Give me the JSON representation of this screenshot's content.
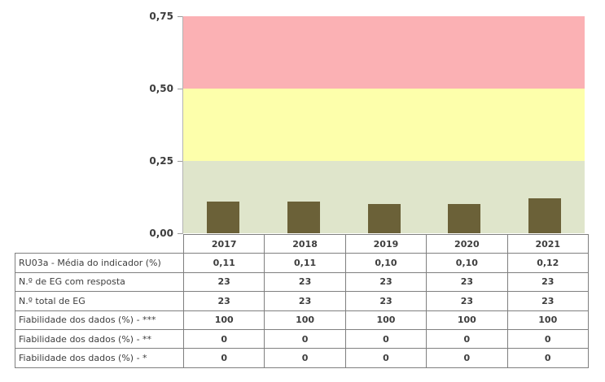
{
  "chart_data": {
    "type": "bar",
    "title": "",
    "xlabel": "",
    "ylabel": "",
    "categories": [
      "2017",
      "2018",
      "2019",
      "2020",
      "2021"
    ],
    "values": [
      0.11,
      0.11,
      0.1,
      0.1,
      0.12
    ],
    "value_labels": [
      "0,11",
      "0,11",
      "0,10",
      "0,10",
      "0,12"
    ],
    "ylim": [
      0,
      0.75
    ],
    "ytick_labels": [
      "0,75",
      "0,50",
      "0,25",
      "0,00"
    ],
    "ytick_values": [
      0.75,
      0.5,
      0.25,
      0.0
    ],
    "grid": false,
    "legend_position": "none",
    "bar_color": "#6B6138",
    "bands": [
      {
        "name": "band-red",
        "from": 0.5,
        "to": 0.75,
        "color": "#FBB1B4"
      },
      {
        "name": "band-yellow",
        "from": 0.25,
        "to": 0.5,
        "color": "#FDFFAB"
      },
      {
        "name": "band-green",
        "from": 0.0,
        "to": 0.25,
        "color": "#DFE5CB"
      }
    ]
  },
  "table": {
    "year_header": [
      "2017",
      "2018",
      "2019",
      "2020",
      "2021"
    ],
    "rows": [
      {
        "label": "RU03a - Média do indicador (%)",
        "values": [
          "0,11",
          "0,11",
          "0,10",
          "0,10",
          "0,12"
        ]
      },
      {
        "label": "N.º de EG com resposta",
        "values": [
          "23",
          "23",
          "23",
          "23",
          "23"
        ]
      },
      {
        "label": "N.º total de EG",
        "values": [
          "23",
          "23",
          "23",
          "23",
          "23"
        ]
      },
      {
        "label": "Fiabilidade dos dados (%) - ***",
        "values": [
          "100",
          "100",
          "100",
          "100",
          "100"
        ]
      },
      {
        "label": "Fiabilidade dos dados (%) - **",
        "values": [
          "0",
          "0",
          "0",
          "0",
          "0"
        ]
      },
      {
        "label": "Fiabilidade dos dados (%) - *",
        "values": [
          "0",
          "0",
          "0",
          "0",
          "0"
        ]
      }
    ]
  },
  "colors": {
    "band_red": "#FBB1B4",
    "band_yellow": "#FDFFAB",
    "band_green": "#DFE5CB",
    "bar": "#6B6138",
    "table_border": "#7F7F7F",
    "axis": "#B3B3B3",
    "text": "#3D3D3D"
  }
}
